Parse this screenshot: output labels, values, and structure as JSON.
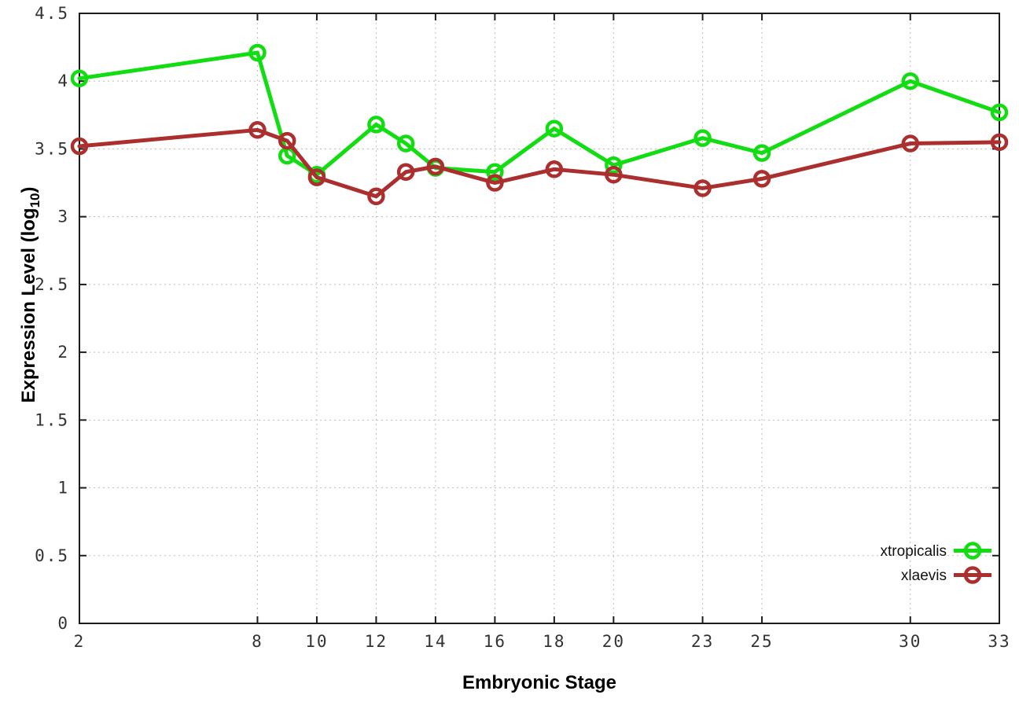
{
  "chart_data": {
    "type": "line",
    "title": "",
    "xlabel": "Embryonic Stage",
    "ylabel": "Expression Level (log10)",
    "ylabel_parts": {
      "main": "Expression Level (log",
      "sub": "10",
      "close": ")"
    },
    "x": [
      2,
      8,
      9,
      10,
      12,
      13,
      14,
      16,
      18,
      20,
      23,
      25,
      30,
      33
    ],
    "series": [
      {
        "name": "xtropicalis",
        "color": "#12dd12",
        "values": [
          4.02,
          4.21,
          3.45,
          3.31,
          3.68,
          3.54,
          3.36,
          3.33,
          3.65,
          3.38,
          3.58,
          3.47,
          4.0,
          3.77
        ]
      },
      {
        "name": "xlaevis",
        "color": "#ab2f2f",
        "values": [
          3.52,
          3.64,
          3.56,
          3.29,
          3.15,
          3.33,
          3.37,
          3.25,
          3.35,
          3.31,
          3.21,
          3.28,
          3.54,
          3.55
        ]
      }
    ],
    "x_ticks": [
      2,
      8,
      10,
      12,
      14,
      16,
      18,
      20,
      23,
      25,
      30,
      33
    ],
    "y_ticks": [
      "0",
      "0.5",
      "1",
      "1.5",
      "2",
      "2.5",
      "3",
      "3.5",
      "4",
      "4.5"
    ],
    "xlim": [
      2,
      33
    ],
    "ylim": [
      0,
      4.5
    ],
    "grid": true,
    "legend_position": "bottom-right",
    "marker": "open-circle"
  },
  "styles": {
    "background": "#ffffff",
    "border_color": "#1c1c1c",
    "grid_color": "#bfbfbf",
    "tick_color": "#1c1c1c",
    "tick_label_color": "#333333",
    "text_color": "#000000"
  }
}
